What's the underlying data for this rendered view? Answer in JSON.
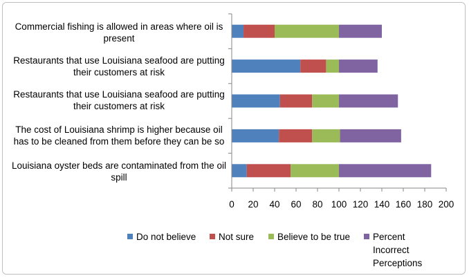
{
  "chart_data": {
    "type": "bar",
    "orientation": "horizontal",
    "stacked": true,
    "title": "",
    "xlabel": "",
    "ylabel": "",
    "xlim": [
      0,
      200
    ],
    "xticks": [
      "0",
      "20",
      "40",
      "60",
      "80",
      "100",
      "120",
      "140",
      "160",
      "180",
      "200"
    ],
    "grid": false,
    "legend_position": "bottom",
    "categories": [
      "Commercial fishing is allowed in areas where oil is present",
      "Restaurants that use Louisiana seafood are putting their customers at risk",
      "Restaurants that use Louisiana seafood are putting their customers at risk",
      "The cost of Louisiana shrimp is higher because oil has to be cleaned from them before they can be so",
      "Louisiana oyster beds are contaminated from the oil spill"
    ],
    "series": [
      {
        "name": "Do not believe",
        "color": "#4f81bd",
        "values": [
          11,
          64,
          45,
          44,
          14
        ]
      },
      {
        "name": "Not sure",
        "color": "#c0504d",
        "values": [
          29,
          24,
          30,
          31,
          41
        ]
      },
      {
        "name": "Believe to be true",
        "color": "#9bbb59",
        "values": [
          60,
          12,
          25,
          26,
          45
        ]
      },
      {
        "name": "Percent Incorrect Perceptions",
        "color": "#8064a2",
        "values": [
          40,
          36,
          55,
          57,
          86
        ]
      }
    ]
  },
  "labels": {
    "cat0": [
      "Commercial fishing is allowed in areas where oil is",
      "present"
    ],
    "cat1": [
      "Restaurants that use Louisiana seafood are putting",
      "their customers at risk"
    ],
    "cat2": [
      "Restaurants that use Louisiana seafood are putting",
      "their customers at risk"
    ],
    "cat3": [
      "The cost of Louisiana shrimp is higher because oil",
      "has to be cleaned from them before they can be so"
    ],
    "cat4": [
      "Louisiana oyster beds are contaminated from the oil",
      "spill"
    ],
    "legend": [
      "Do not believe",
      "Not sure",
      "Believe to be true",
      "Percent",
      "Incorrect",
      "Perceptions"
    ]
  }
}
